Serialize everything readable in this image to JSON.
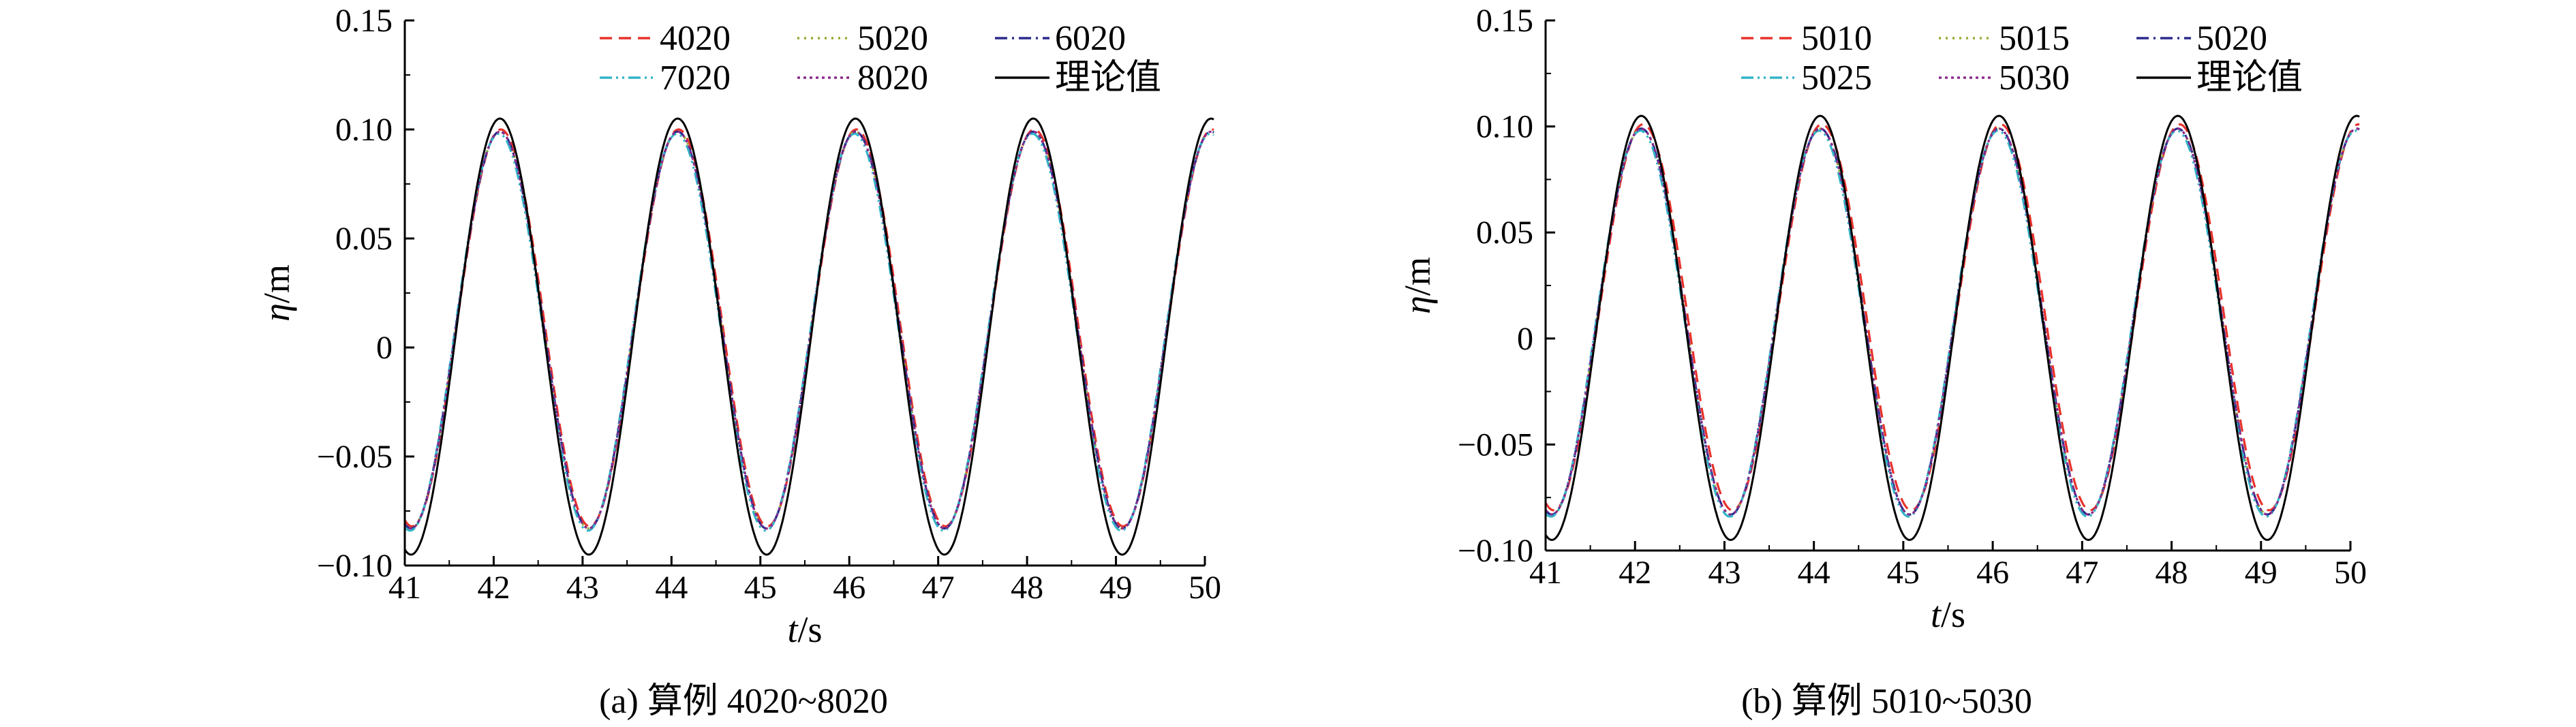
{
  "figure": {
    "panels": [
      {
        "caption": "(a) 算例 4020~8020",
        "xlabel_var": "t",
        "xlabel_unit": "/s",
        "ylabel_var": "η",
        "ylabel_unit": "/m",
        "x_ticks": [
          "41",
          "42",
          "43",
          "44",
          "45",
          "46",
          "47",
          "48",
          "49",
          "50"
        ],
        "y_ticks": [
          "−0.10",
          "−0.05",
          "0",
          "0.05",
          "0.10",
          "0.15"
        ],
        "legend": [
          {
            "label": "4020",
            "color": "#e8322b",
            "dash": "dashed"
          },
          {
            "label": "5020",
            "color": "#9aa832",
            "dash": "dotted"
          },
          {
            "label": "6020",
            "color": "#2b2b8c",
            "dash": "dashdot"
          },
          {
            "label": "7020",
            "color": "#33b5c8",
            "dash": "dashdotdot"
          },
          {
            "label": "8020",
            "color": "#8a2b8c",
            "dash": "shortdot"
          },
          {
            "label": "理论值",
            "color": "#000000",
            "dash": "solid"
          }
        ]
      },
      {
        "caption": "(b) 算例 5010~5030",
        "xlabel_var": "t",
        "xlabel_unit": "/s",
        "ylabel_var": "η",
        "ylabel_unit": "/m",
        "x_ticks": [
          "41",
          "42",
          "43",
          "44",
          "45",
          "46",
          "47",
          "48",
          "49",
          "50"
        ],
        "y_ticks": [
          "−0.10",
          "−0.05",
          "0",
          "0.05",
          "0.10",
          "0.15"
        ],
        "legend": [
          {
            "label": "5010",
            "color": "#e8322b",
            "dash": "dashed"
          },
          {
            "label": "5015",
            "color": "#9aa832",
            "dash": "dotted"
          },
          {
            "label": "5020",
            "color": "#2b2b8c",
            "dash": "dashdot"
          },
          {
            "label": "5025",
            "color": "#33b5c8",
            "dash": "dashdotdot"
          },
          {
            "label": "5030",
            "color": "#8a2b8c",
            "dash": "shortdot"
          },
          {
            "label": "理论值",
            "color": "#000000",
            "dash": "solid"
          }
        ]
      }
    ]
  },
  "chart_data": [
    {
      "type": "line",
      "title": "(a) 算例 4020~8020",
      "xlabel": "t/s",
      "ylabel": "η/m",
      "xlim": [
        41,
        50
      ],
      "ylim": [
        -0.1,
        0.15
      ],
      "grid": false,
      "legend_position": "top-right",
      "series": [
        {
          "name": "4020",
          "model": "wave",
          "period": 2.0,
          "crest_time": 42.08,
          "crest": 0.1,
          "trough": -0.082,
          "color": "#e8322b"
        },
        {
          "name": "5020",
          "model": "wave",
          "period": 2.0,
          "crest_time": 42.07,
          "crest": 0.099,
          "trough": -0.083,
          "color": "#9aa832"
        },
        {
          "name": "6020",
          "model": "wave",
          "period": 2.0,
          "crest_time": 42.07,
          "crest": 0.099,
          "trough": -0.083,
          "color": "#2b2b8c"
        },
        {
          "name": "7020",
          "model": "wave",
          "period": 2.0,
          "crest_time": 42.06,
          "crest": 0.098,
          "trough": -0.084,
          "color": "#33b5c8"
        },
        {
          "name": "8020",
          "model": "wave",
          "period": 2.0,
          "crest_time": 42.07,
          "crest": 0.099,
          "trough": -0.083,
          "color": "#8a2b8c"
        },
        {
          "name": "理论值",
          "model": "wave",
          "period": 2.0,
          "crest_time": 42.07,
          "crest": 0.105,
          "trough": -0.095,
          "color": "#000000"
        }
      ],
      "x_end": 50.1
    },
    {
      "type": "line",
      "title": "(b) 算例 5010~5030",
      "xlabel": "t/s",
      "ylabel": "η/m",
      "xlim": [
        41,
        50
      ],
      "ylim": [
        -0.1,
        0.15
      ],
      "grid": false,
      "legend_position": "top-right",
      "series": [
        {
          "name": "5010",
          "model": "wave",
          "period": 2.0,
          "crest_time": 42.09,
          "crest": 0.101,
          "trough": -0.081,
          "color": "#e8322b"
        },
        {
          "name": "5015",
          "model": "wave",
          "period": 2.0,
          "crest_time": 42.07,
          "crest": 0.099,
          "trough": -0.083,
          "color": "#9aa832"
        },
        {
          "name": "5020",
          "model": "wave",
          "period": 2.0,
          "crest_time": 42.07,
          "crest": 0.099,
          "trough": -0.083,
          "color": "#2b2b8c"
        },
        {
          "name": "5025",
          "model": "wave",
          "period": 2.0,
          "crest_time": 42.06,
          "crest": 0.098,
          "trough": -0.084,
          "color": "#33b5c8"
        },
        {
          "name": "5030",
          "model": "wave",
          "period": 2.0,
          "crest_time": 42.07,
          "crest": 0.099,
          "trough": -0.083,
          "color": "#8a2b8c"
        },
        {
          "name": "理论值",
          "model": "wave",
          "period": 2.0,
          "crest_time": 42.07,
          "crest": 0.105,
          "trough": -0.095,
          "color": "#000000"
        }
      ],
      "x_end": 50.1
    }
  ]
}
